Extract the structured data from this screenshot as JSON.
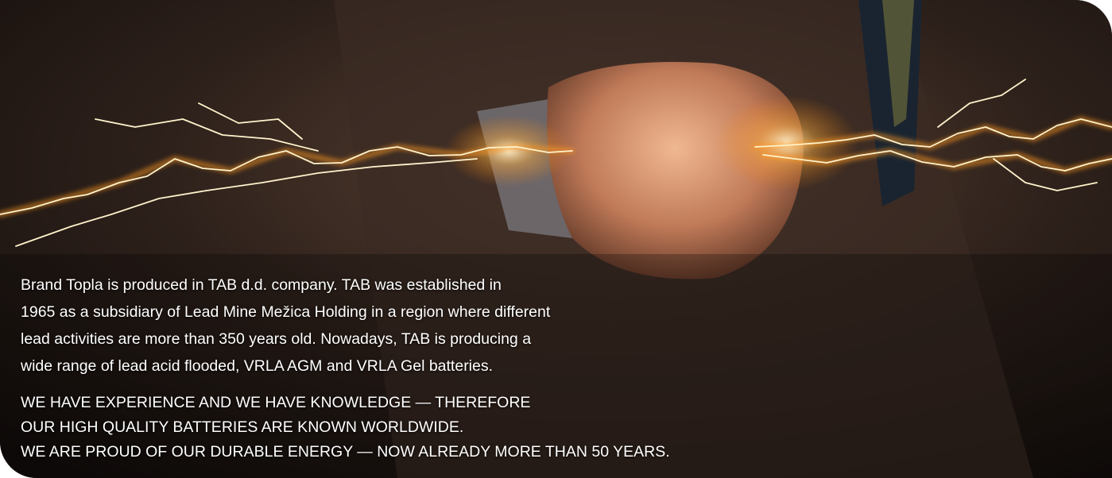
{
  "intro": {
    "lines": [
      "Brand Topla is produced in TAB d.d. company. TAB was established in",
      "1965 as a subsidiary of Lead Mine Mežica Holding in a region where different",
      "lead activities are more than 350 years old. Nowadays, TAB is producing a",
      "wide range of lead acid flooded, VRLA AGM and VRLA Gel batteries."
    ]
  },
  "slogan": {
    "lines": [
      "WE HAVE EXPERIENCE AND WE HAVE KNOWLEDGE — THEREFORE",
      "OUR HIGH QUALITY BATTERIES ARE KNOWN WORLDWIDE.",
      "WE ARE PROUD OF OUR DURABLE ENERGY — NOW ALREADY MORE THAN 50 YEARS."
    ]
  }
}
